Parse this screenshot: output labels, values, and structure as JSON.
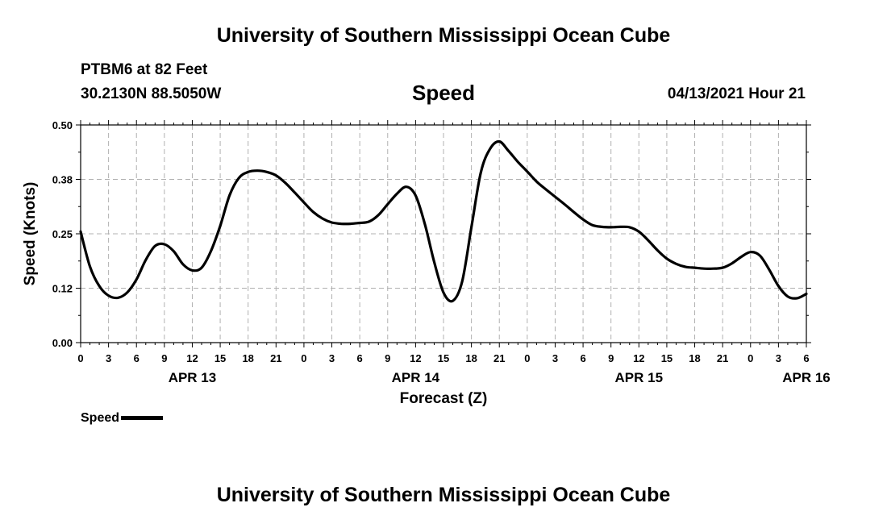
{
  "header": {
    "title_top": "University of Southern Mississippi Ocean Cube",
    "station": "PTBM6 at 82 Feet",
    "coords": "30.2130N  88.5050W",
    "variable": "Speed",
    "datetime": "04/13/2021 Hour 21"
  },
  "legend": {
    "label": "Speed"
  },
  "footer": {
    "title_bottom": "University of Southern Mississippi Ocean Cube"
  },
  "colors": {
    "line": "#000000",
    "grid": "#b0b0b0",
    "frame": "#000000"
  },
  "chart_data": {
    "type": "line",
    "title": "Speed",
    "ylabel": "Speed (Knots)",
    "xlabel": "Forecast (Z)",
    "ylim": [
      0,
      0.5
    ],
    "xlim": [
      0,
      78
    ],
    "grid": true,
    "y_ticks": [
      0.0,
      0.125,
      0.25,
      0.375,
      0.5
    ],
    "y_tick_labels": [
      "0.00",
      "0.12",
      "0.25",
      "0.38",
      "0.50"
    ],
    "x_tick_labels": [
      "0",
      "3",
      "6",
      "9",
      "12",
      "15",
      "18",
      "21",
      "0",
      "3",
      "6",
      "9",
      "12",
      "15",
      "18",
      "21",
      "0",
      "3",
      "6",
      "9",
      "12",
      "15",
      "18",
      "21",
      "0",
      "3",
      "6"
    ],
    "date_labels": [
      {
        "label": "APR 13",
        "hour": 12
      },
      {
        "label": "APR 14",
        "hour": 36
      },
      {
        "label": "APR 15",
        "hour": 60
      },
      {
        "label": "APR 16",
        "hour": 78
      }
    ],
    "series": [
      {
        "name": "Speed",
        "x": [
          0,
          1,
          2,
          3,
          4,
          5,
          6,
          7,
          8,
          9,
          10,
          11,
          12,
          13,
          14,
          15,
          16,
          17,
          18,
          19,
          20,
          21,
          22,
          23,
          24,
          25,
          26,
          27,
          28,
          29,
          30,
          31,
          32,
          33,
          34,
          35,
          36,
          37,
          38,
          39,
          40,
          41,
          42,
          43,
          44,
          45,
          46,
          47,
          48,
          49,
          50,
          51,
          52,
          53,
          54,
          55,
          56,
          57,
          58,
          59,
          60,
          61,
          62,
          63,
          64,
          65,
          66,
          67,
          68,
          69,
          70,
          71,
          72,
          73,
          74,
          75,
          76,
          77,
          78
        ],
        "values": [
          0.255,
          0.175,
          0.13,
          0.108,
          0.103,
          0.115,
          0.145,
          0.19,
          0.222,
          0.226,
          0.21,
          0.18,
          0.166,
          0.172,
          0.21,
          0.268,
          0.338,
          0.378,
          0.392,
          0.395,
          0.392,
          0.384,
          0.367,
          0.345,
          0.322,
          0.3,
          0.285,
          0.276,
          0.273,
          0.273,
          0.275,
          0.278,
          0.293,
          0.318,
          0.342,
          0.358,
          0.338,
          0.272,
          0.185,
          0.115,
          0.096,
          0.14,
          0.265,
          0.39,
          0.445,
          0.462,
          0.44,
          0.415,
          0.393,
          0.37,
          0.352,
          0.335,
          0.318,
          0.3,
          0.283,
          0.27,
          0.266,
          0.265,
          0.266,
          0.265,
          0.255,
          0.235,
          0.212,
          0.193,
          0.181,
          0.174,
          0.172,
          0.17,
          0.17,
          0.172,
          0.182,
          0.197,
          0.208,
          0.2,
          0.168,
          0.13,
          0.106,
          0.102,
          0.112
        ]
      }
    ]
  }
}
